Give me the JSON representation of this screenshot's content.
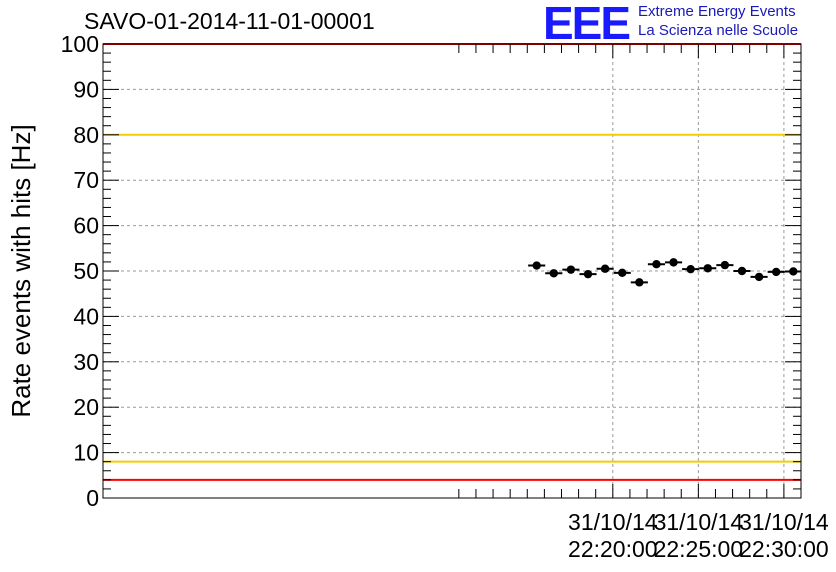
{
  "title": "SAVO-01-2014-11-01-00001",
  "logo": {
    "mark": "EEE",
    "line1": "Extreme Energy Events",
    "line2": "La Scienza nelle Scuole"
  },
  "chart_data": {
    "type": "scatter",
    "title": "SAVO-01-2014-11-01-00001",
    "ylabel": "Rate events with hits [Hz]",
    "xlabel": "",
    "ylim": [
      0,
      100
    ],
    "xlim_minutes": [
      -9.8,
      31.0
    ],
    "grid": true,
    "y_ticks": [
      "0",
      "10",
      "20",
      "30",
      "40",
      "50",
      "60",
      "70",
      "80",
      "90",
      "100"
    ],
    "x_ticks": [
      {
        "minute": 20,
        "date": "31/10/14",
        "time": "22:20:00"
      },
      {
        "minute": 25,
        "date": "31/10/14",
        "time": "22:25:00"
      },
      {
        "minute": 30,
        "date": "31/10/14",
        "time": "22:30:00"
      }
    ],
    "bin_width_minutes": 1,
    "x_minutes": [
      15.55,
      16.55,
      17.55,
      18.55,
      19.55,
      20.55,
      21.55,
      22.55,
      23.55,
      24.55,
      25.55,
      26.55,
      27.55,
      28.55,
      29.55,
      30.55
    ],
    "values": [
      51.2,
      49.5,
      50.3,
      49.3,
      50.5,
      49.6,
      47.5,
      51.5,
      51.9,
      50.4,
      50.6,
      51.3,
      50.0,
      48.7,
      49.8,
      49.9
    ],
    "reference_lines": [
      {
        "value": 100,
        "color": "#ff0000"
      },
      {
        "value": 80,
        "color": "#f5cc00"
      },
      {
        "value": 8,
        "color": "#f5cc00"
      },
      {
        "value": 4,
        "color": "#ff0000"
      }
    ]
  }
}
